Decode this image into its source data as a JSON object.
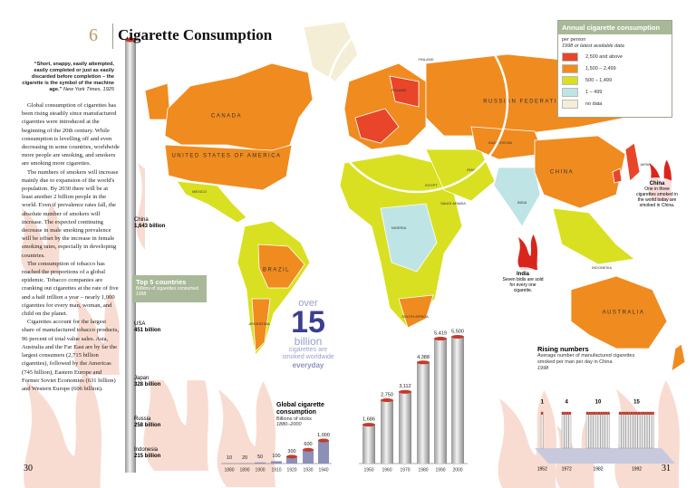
{
  "page_numbers": {
    "left": "30",
    "right": "31"
  },
  "header": {
    "number": "6",
    "title": "Cigarette Consumption"
  },
  "quote": {
    "text": "“Short, snappy, easily attempted, easily completed or just as easily discarded before completion – the cigarette is the symbol of the machine age.”",
    "source": "New York Times, 1925"
  },
  "body": [
    "Global consumption of cigarettes has been rising steadily since manufactured cigarettes were introduced at the beginning of the 20th century. While consumption is levelling off and even decreasing in some countries, worldwide more people are smoking, and smokers are smoking more cigarettes.",
    "The numbers of smokers will increase mainly due to expansion of the world's population. By 2030 there will be at least another 2 billion people in the world. Even if prevalence rates fall, the absolute number of smokers will increase. The expected continuing decrease in male smoking prevalence will be offset by the increase in female smoking rates, especially in developing countries.",
    "The consumption of tobacco has reached the proportions of a global epidemic. Tobacco companies are cranking out cigarettes at the rate of five and a half trillion a year – nearly 1,000 cigarettes for every man, woman, and child on the planet.",
    "Cigarettes account for the largest share of manufactured tobacco products, 96 percent of total value sales. Asia, Australia and the Far East are by far the largest consumers (2,715 billion cigarettes), followed by the Americas (745 billion), Eastern Europe and Former Soviet Economies (631 billion) and Western Europe (606 billion)."
  ],
  "top5": {
    "title": "Top 5 countries",
    "subtitle": "Billions of cigarettes consumed",
    "year": "1998",
    "countries": [
      {
        "name": "China",
        "value": "1,643 billion"
      },
      {
        "name": "USA",
        "value": "451 billion"
      },
      {
        "name": "Japan",
        "value": "328 billion"
      },
      {
        "name": "Russia",
        "value": "258 billion"
      },
      {
        "name": "Indonesia",
        "value": "215 billion"
      }
    ]
  },
  "headline": {
    "over": "over",
    "number": "15",
    "unit": "billion",
    "text": "cigarettes are smoked worldwide",
    "everyday": "everyday"
  },
  "legend": {
    "title": "Annual cigarette consumption",
    "subtitle": "per person",
    "note": "1998 or latest available data",
    "items": [
      {
        "label": "2,500 and above",
        "color": "#e8452a"
      },
      {
        "label": "1,500 – 2,499",
        "color": "#f08b1f"
      },
      {
        "label": "500 – 1,499",
        "color": "#d9e021"
      },
      {
        "label": "1 – 499",
        "color": "#bfe4e6"
      },
      {
        "label": "no data",
        "color": "#f4eed6"
      }
    ]
  },
  "map_labels": [
    "CANADA",
    "UNITED STATES OF AMERICA",
    "MEXICO",
    "BRAZIL",
    "ARGENTINA",
    "RUSSIAN FEDERATION",
    "KAZAKHSTAN",
    "CHINA",
    "INDIA",
    "JAPAN",
    "INDONESIA",
    "AUSTRALIA",
    "EGYPT",
    "SAUDI ARABIA",
    "IRAN",
    "NIGERIA",
    "SOUTH AFRICA",
    "POLAND",
    "FINLAND"
  ],
  "callouts": {
    "china": {
      "title": "China",
      "text": "One in three cigarettes smoked in the world today are smoked in China."
    },
    "india": {
      "title": "India",
      "text": "Seven bidis are sold for every one cigarette."
    }
  },
  "global_chart": {
    "type": "bar",
    "title": "Global cigarette consumption",
    "subtitle": "Billions of sticks",
    "period": "1880–2000",
    "categories": [
      1880,
      1890,
      1900,
      1910,
      1920,
      1930,
      1940,
      1950,
      1960,
      1970,
      1980,
      1990,
      2000
    ],
    "values": [
      10,
      20,
      50,
      100,
      300,
      600,
      1000,
      1686,
      2750,
      3112,
      4388,
      5419,
      5500
    ],
    "value_labels": [
      "10",
      "20",
      "50",
      "100",
      "300",
      "600",
      "1,000",
      "1,686",
      "2,750",
      "3,112",
      "4,388",
      "5,419",
      "5,500"
    ]
  },
  "china_chart": {
    "type": "pictogram",
    "title": "Rising numbers",
    "subtitle": "Average number of manufactured cigarettes smoked per man per day in China",
    "period": "1998",
    "categories": [
      1952,
      1972,
      1982,
      1992
    ],
    "values": [
      1,
      4,
      10,
      15
    ]
  }
}
